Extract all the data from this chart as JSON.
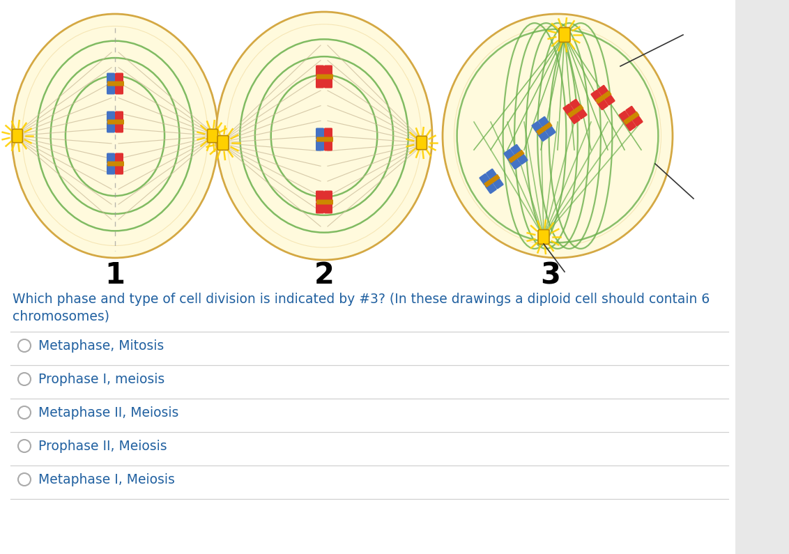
{
  "bg_color": "#ffffff",
  "right_panel_color": "#e8e8e8",
  "question_text_line1": "Which phase and type of cell division is indicated by #3? (In these drawings a diploid cell should contain 6",
  "question_text_line2": "chromosomes)",
  "question_color": "#2060a0",
  "options": [
    "Metaphase, Mitosis",
    "Prophase I, meiosis",
    "Metaphase II, Meiosis",
    "Prophase II, Meiosis",
    "Metaphase I, Meiosis"
  ],
  "option_color": "#2060a0",
  "divider_color": "#d0d0d0",
  "number_color": "#000000",
  "cell_bg": "#fffadd",
  "cell_outline": "#d4a843",
  "spindle_green": "#6ab04c",
  "spindle_tan": "#b8a88a",
  "chr_blue": "#4472C4",
  "chr_red": "#e03030",
  "centromere_color": "#cc8800",
  "centriole_yellow": "#FFD000",
  "centriole_edge": "#CC9900"
}
